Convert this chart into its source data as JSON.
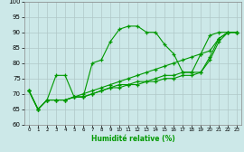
{
  "xlabel": "Humidité relative (%)",
  "xlim": [
    -0.5,
    23.5
  ],
  "ylim": [
    60,
    100
  ],
  "yticks": [
    60,
    65,
    70,
    75,
    80,
    85,
    90,
    95,
    100
  ],
  "xticks": [
    0,
    1,
    2,
    3,
    4,
    5,
    6,
    7,
    8,
    9,
    10,
    11,
    12,
    13,
    14,
    15,
    16,
    17,
    18,
    19,
    20,
    21,
    22,
    23
  ],
  "background_color": "#cce8e8",
  "grid_color": "#b0c8c8",
  "line_color": "#009900",
  "lines": [
    {
      "x": [
        0,
        1,
        2,
        3,
        4,
        5,
        6,
        7,
        8,
        9,
        10,
        11,
        12,
        13,
        14,
        15,
        16,
        17,
        18,
        19,
        20,
        21,
        22,
        23
      ],
      "y": [
        71,
        65,
        68,
        76,
        76,
        69,
        69,
        80,
        81,
        87,
        91,
        92,
        92,
        90,
        90,
        86,
        83,
        77,
        77,
        83,
        89,
        90,
        90,
        90
      ]
    },
    {
      "x": [
        0,
        1,
        2,
        3,
        4,
        5,
        6,
        7,
        8,
        9,
        10,
        11,
        12,
        13,
        14,
        15,
        16,
        17,
        18,
        19,
        20,
        21,
        22,
        23
      ],
      "y": [
        71,
        65,
        68,
        68,
        68,
        69,
        70,
        71,
        72,
        73,
        74,
        75,
        76,
        77,
        78,
        79,
        80,
        81,
        82,
        83,
        84,
        88,
        90,
        90
      ]
    },
    {
      "x": [
        0,
        1,
        2,
        3,
        4,
        5,
        6,
        7,
        8,
        9,
        10,
        11,
        12,
        13,
        14,
        15,
        16,
        17,
        18,
        19,
        20,
        21,
        22,
        23
      ],
      "y": [
        71,
        65,
        68,
        68,
        68,
        69,
        69,
        70,
        71,
        72,
        73,
        73,
        74,
        74,
        75,
        76,
        76,
        77,
        77,
        77,
        82,
        88,
        90,
        90
      ]
    },
    {
      "x": [
        0,
        1,
        2,
        3,
        4,
        5,
        6,
        7,
        8,
        9,
        10,
        11,
        12,
        13,
        14,
        15,
        16,
        17,
        18,
        19,
        20,
        21,
        22,
        23
      ],
      "y": [
        71,
        65,
        68,
        68,
        68,
        69,
        69,
        70,
        71,
        72,
        72,
        73,
        73,
        74,
        74,
        75,
        75,
        76,
        76,
        77,
        81,
        87,
        90,
        90
      ]
    }
  ]
}
